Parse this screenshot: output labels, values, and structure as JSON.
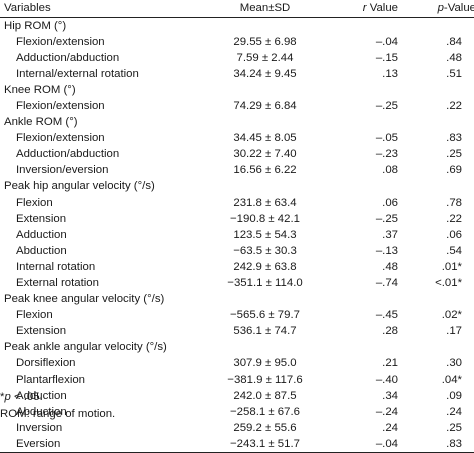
{
  "header": {
    "variables": "Variables",
    "mean_sd": "Mean±SD",
    "r_value": "r Value",
    "p_value": "p-Value"
  },
  "rows": [
    {
      "type": "group",
      "label": "Hip ROM (°)"
    },
    {
      "type": "item",
      "label": "Flexion/extension",
      "mean": "29.55 ± 6.98",
      "r": "–.04",
      "p": ".84"
    },
    {
      "type": "item",
      "label": "Adduction/abduction",
      "mean": "7.59 ± 2.44",
      "r": "–.15",
      "p": ".48"
    },
    {
      "type": "item",
      "label": "Internal/external rotation",
      "mean": "34.24 ± 9.45",
      "r": ".13",
      "p": ".51"
    },
    {
      "type": "group",
      "label": "Knee ROM (°)"
    },
    {
      "type": "item",
      "label": "Flexion/extension",
      "mean": "74.29 ± 6.84",
      "r": "–.25",
      "p": ".22"
    },
    {
      "type": "group",
      "label": "Ankle ROM (°)"
    },
    {
      "type": "item",
      "label": "Flexion/extension",
      "mean": "34.45 ± 8.05",
      "r": "–.05",
      "p": ".83"
    },
    {
      "type": "item",
      "label": "Adduction/abduction",
      "mean": "30.22 ± 7.40",
      "r": "–.23",
      "p": ".25"
    },
    {
      "type": "item",
      "label": "Inversion/eversion",
      "mean": "16.56 ± 6.22",
      "r": ".08",
      "p": ".69"
    },
    {
      "type": "group",
      "label": "Peak hip angular velocity (°/s)"
    },
    {
      "type": "item",
      "label": "Flexion",
      "mean": "231.8 ± 63.4",
      "r": ".06",
      "p": ".78"
    },
    {
      "type": "item",
      "label": "Extension",
      "mean": "−190.8 ± 42.1",
      "r": "–.25",
      "p": ".22"
    },
    {
      "type": "item",
      "label": "Adduction",
      "mean": "123.5 ± 54.3",
      "r": ".37",
      "p": ".06"
    },
    {
      "type": "item",
      "label": "Abduction",
      "mean": "−63.5 ± 30.3",
      "r": "–.13",
      "p": ".54"
    },
    {
      "type": "item",
      "label": "Internal rotation",
      "mean": "242.9 ± 63.8",
      "r": ".48",
      "p": ".01*"
    },
    {
      "type": "item",
      "label": "External rotation",
      "mean": "−351.1 ± 114.0",
      "r": "–.74",
      "p": "<.01*"
    },
    {
      "type": "group",
      "label": "Peak knee angular velocity (°/s)"
    },
    {
      "type": "item",
      "label": "Flexion",
      "mean": "−565.6 ± 79.7",
      "r": "–.45",
      "p": ".02*"
    },
    {
      "type": "item",
      "label": "Extension",
      "mean": "536.1 ± 74.7",
      "r": ".28",
      "p": ".17"
    },
    {
      "type": "group",
      "label": "Peak ankle angular velocity (°/s)"
    },
    {
      "type": "item",
      "label": "Dorsiflexion",
      "mean": "307.9 ± 95.0",
      "r": ".21",
      "p": ".30"
    },
    {
      "type": "item",
      "label": "Plantarflexion",
      "mean": "−381.9 ± 117.6",
      "r": "–.40",
      "p": ".04*"
    },
    {
      "type": "item",
      "label": "Adduction",
      "mean": "242.0 ± 87.5",
      "r": ".34",
      "p": ".09"
    },
    {
      "type": "item",
      "label": "Abduction",
      "mean": "−258.1 ± 67.6",
      "r": "–.24",
      "p": ".24"
    },
    {
      "type": "item",
      "label": "Inversion",
      "mean": "259.2 ± 55.6",
      "r": ".24",
      "p": ".25"
    },
    {
      "type": "item",
      "label": "Eversion",
      "mean": "−243.1 ± 51.7",
      "r": "–.04",
      "p": ".83"
    }
  ],
  "notes": {
    "significance_symbol": "*",
    "significance_p": "p",
    "significance_rest": " < .05.",
    "abbreviation": "ROM: range of motion."
  }
}
